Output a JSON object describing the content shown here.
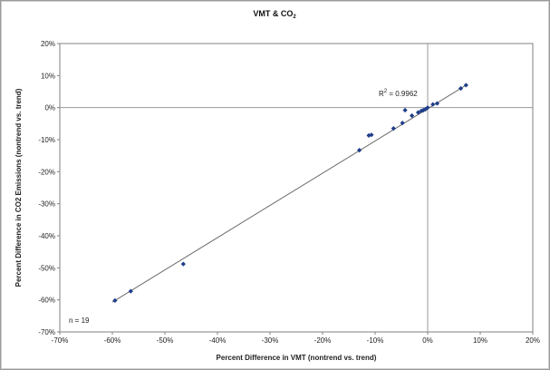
{
  "chart_data": {
    "type": "scatter",
    "title": "VMT & CO",
    "title_subscript": "2",
    "xlabel": "Percent Difference in VMT (nontrend vs. trend)",
    "ylabel": "Percent Difference in CO2 Emissions (nontrend vs. trend)",
    "xlim": [
      -70,
      20
    ],
    "ylim": [
      -70,
      20
    ],
    "x_ticks": [
      "-70%",
      "-60%",
      "-50%",
      "-40%",
      "-30%",
      "-20%",
      "-10%",
      "0%",
      "10%",
      "20%"
    ],
    "y_ticks": [
      "20%",
      "10%",
      "0%",
      "-10%",
      "-20%",
      "-30%",
      "-40%",
      "-50%",
      "-60%",
      "-70%"
    ],
    "x_tick_values": [
      -70,
      -60,
      -50,
      -40,
      -30,
      -20,
      -10,
      0,
      10,
      20
    ],
    "y_tick_values": [
      20,
      10,
      0,
      -10,
      -20,
      -30,
      -40,
      -50,
      -60,
      -70
    ],
    "series": [
      {
        "x": [
          -59.5,
          -56.5,
          -46.5,
          -13.0,
          -11.2,
          -10.7,
          -6.5,
          -4.8,
          -4.3,
          -3.0,
          -1.8,
          -1.2,
          -0.8,
          -0.4,
          0.0,
          1.0,
          1.8,
          6.3,
          7.3
        ],
        "y": [
          -60.2,
          -57.3,
          -48.8,
          -13.3,
          -8.7,
          -8.5,
          -6.5,
          -4.8,
          -0.8,
          -2.5,
          -1.5,
          -1.0,
          -0.8,
          -0.5,
          0.0,
          1.0,
          1.3,
          6.0,
          7.0
        ],
        "color": "#1f3d8a"
      }
    ],
    "trendline": {
      "x": [
        -60,
        7.5
      ],
      "y": [
        -60.7,
        7.2
      ],
      "color": "#666666"
    },
    "r_squared_label": "R",
    "r_squared_sup": "2",
    "r_squared_value": " = 0.9962",
    "n_label": "n = 19",
    "grid": "zero-lines",
    "legend": "none"
  }
}
